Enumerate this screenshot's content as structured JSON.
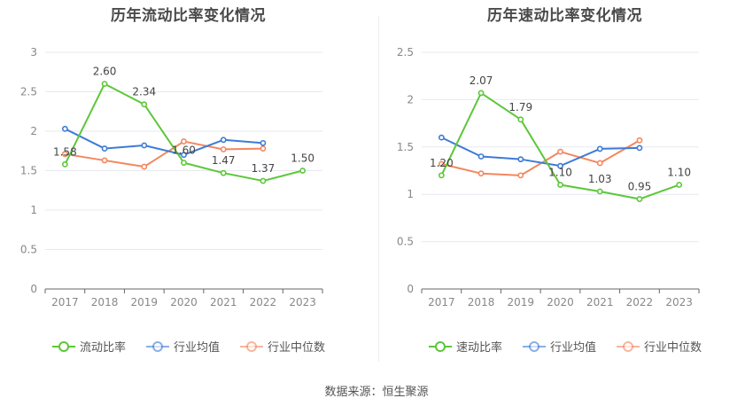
{
  "source_text": "数据来源：恒生聚源",
  "chart_data": [
    {
      "type": "line",
      "title": "历年流动比率变化情况",
      "x": [
        "2017",
        "2018",
        "2019",
        "2020",
        "2021",
        "2022",
        "2023"
      ],
      "ylim": [
        0,
        3
      ],
      "yticks": [
        "0",
        "0.5",
        "1",
        "1.5",
        "2",
        "2.5",
        "3"
      ],
      "grid": true,
      "legend_position": "bottom-center",
      "series": [
        {
          "name": "流动比率",
          "color": "#5dc73a",
          "values": [
            1.58,
            2.6,
            2.34,
            1.6,
            1.47,
            1.37,
            1.5
          ],
          "labels": [
            "1.58",
            "2.60",
            "2.34",
            "1.60",
            "1.47",
            "1.37",
            "1.50"
          ]
        },
        {
          "name": "行业均值",
          "color": "#3e7bd6",
          "values": [
            2.03,
            1.78,
            1.82,
            1.7,
            1.89,
            1.85,
            null
          ]
        },
        {
          "name": "行业中位数",
          "color": "#f4875e",
          "values": [
            1.71,
            1.63,
            1.55,
            1.87,
            1.77,
            1.78,
            null
          ]
        }
      ]
    },
    {
      "type": "line",
      "title": "历年速动比率变化情况",
      "x": [
        "2017",
        "2018",
        "2019",
        "2020",
        "2021",
        "2022",
        "2023"
      ],
      "ylim": [
        0,
        2.5
      ],
      "yticks": [
        "0",
        "0.5",
        "1",
        "1.5",
        "2",
        "2.5"
      ],
      "grid": true,
      "legend_position": "bottom-center",
      "series": [
        {
          "name": "速动比率",
          "color": "#5dc73a",
          "values": [
            1.2,
            2.07,
            1.79,
            1.1,
            1.03,
            0.95,
            1.1
          ],
          "labels": [
            "1.20",
            "2.07",
            "1.79",
            "1.10",
            "1.03",
            "0.95",
            "1.10"
          ]
        },
        {
          "name": "行业均值",
          "color": "#3e7bd6",
          "values": [
            1.6,
            1.4,
            1.37,
            1.3,
            1.48,
            1.49,
            null
          ]
        },
        {
          "name": "行业中位数",
          "color": "#f4875e",
          "values": [
            1.32,
            1.22,
            1.2,
            1.45,
            1.33,
            1.57,
            null
          ]
        }
      ]
    }
  ]
}
